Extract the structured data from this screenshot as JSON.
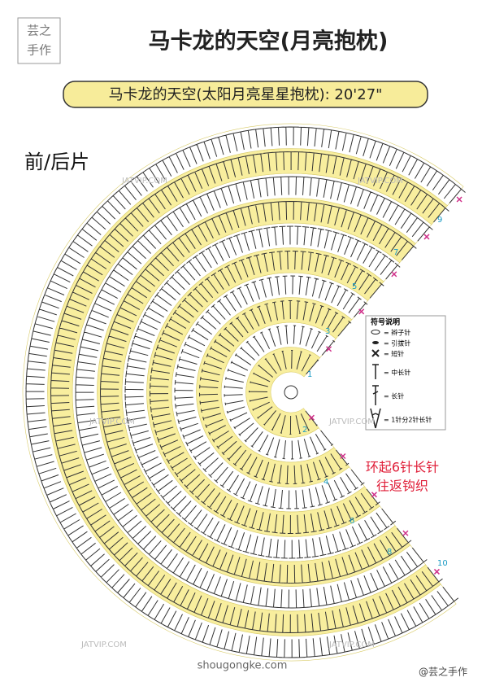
{
  "logo": [
    "芸之",
    "手作"
  ],
  "title": "马卡龙的天空(月亮抱枕)",
  "subtitle": "马卡龙的天空(太阳月亮星星抱枕): 20'27\"",
  "section_label": "前/后片",
  "row_numbers": [
    1,
    2,
    3,
    4,
    5,
    6,
    7,
    8,
    9,
    10
  ],
  "legend": {
    "title": "符号说明",
    "items": [
      "= 辫子针",
      "= 引拔针",
      "= 短针",
      "= 中长针",
      "= 长针",
      "= 1针分2针长针"
    ]
  },
  "note": [
    "环起6针长针",
    "往返钩织"
  ],
  "watermarks": [
    "JATVIP.COM",
    "shougongke.com",
    "@芸之手作"
  ]
}
